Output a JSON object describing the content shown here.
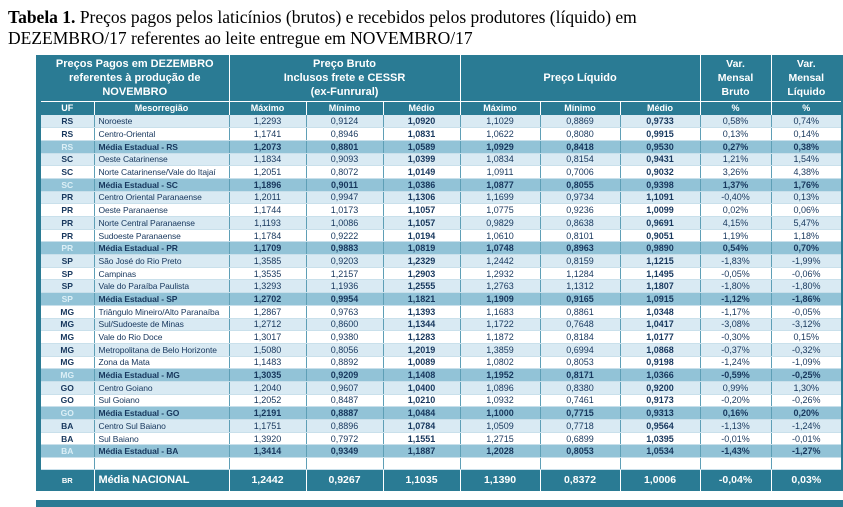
{
  "title": {
    "bold": "Tabela 1.",
    "line1_rest": " Preços pagos pelos laticínios (brutos) e recebidos pelos produtores (líquido) em",
    "line2": "DEZEMBRO/17 referentes ao leite entregue em NOVEMBRO/17"
  },
  "header": {
    "group_left": [
      "Preços Pagos em DEZEMBRO",
      "referentes à produção de",
      "NOVEMBRO"
    ],
    "group_bruto": [
      "Preço Bruto",
      "Inclusos frete e CESSR",
      "(ex-Funrural)"
    ],
    "group_liquido": "Preço Líquido",
    "group_var_bruto": [
      "Var.",
      "Mensal",
      "Bruto"
    ],
    "group_var_liquido": [
      "Var.",
      "Mensal",
      "Líquido"
    ],
    "sub": [
      "UF",
      "Mesorregião",
      "Máximo",
      "Mínimo",
      "Médio",
      "Máximo",
      "Mínimo",
      "Médio",
      "%",
      "%"
    ]
  },
  "rows": [
    {
      "uf": "RS",
      "name": "Noroeste",
      "values": [
        "1,2293",
        "0,9124",
        "1,0920",
        "1,1029",
        "0,8869",
        "0,9733"
      ],
      "vars": [
        "0,58%",
        "0,74%"
      ],
      "shade": "pale"
    },
    {
      "uf": "RS",
      "name": "Centro-Oriental",
      "values": [
        "1,1741",
        "0,8946",
        "1,0831",
        "1,0622",
        "0,8080",
        "0,9915"
      ],
      "vars": [
        "0,13%",
        "0,14%"
      ],
      "shade": "white"
    },
    {
      "uf": "RS",
      "name": "Média Estadual - RS",
      "values": [
        "1,2073",
        "0,8801",
        "1,0589",
        "1,0929",
        "0,8418",
        "0,9530"
      ],
      "vars": [
        "0,27%",
        "0,38%"
      ],
      "shade": "media"
    },
    {
      "uf": "SC",
      "name": "Oeste Catarinense",
      "values": [
        "1,1834",
        "0,9093",
        "1,0399",
        "1,0834",
        "0,8154",
        "0,9431"
      ],
      "vars": [
        "1,21%",
        "1,54%"
      ],
      "shade": "pale"
    },
    {
      "uf": "SC",
      "name": "Norte Catarinense/Vale do Itajaí",
      "values": [
        "1,2051",
        "0,8072",
        "1,0149",
        "1,0911",
        "0,7006",
        "0,9032"
      ],
      "vars": [
        "3,26%",
        "4,38%"
      ],
      "shade": "white"
    },
    {
      "uf": "SC",
      "name": "Média Estadual - SC",
      "values": [
        "1,1896",
        "0,9011",
        "1,0386",
        "1,0877",
        "0,8055",
        "0,9398"
      ],
      "vars": [
        "1,37%",
        "1,76%"
      ],
      "shade": "media"
    },
    {
      "uf": "PR",
      "name": "Centro Oriental Paranaense",
      "values": [
        "1,2011",
        "0,9947",
        "1,1306",
        "1,1699",
        "0,9734",
        "1,1091"
      ],
      "vars": [
        "-0,40%",
        "0,13%"
      ],
      "shade": "pale"
    },
    {
      "uf": "PR",
      "name": "Oeste Paranaense",
      "values": [
        "1,1744",
        "1,0173",
        "1,1057",
        "1,0775",
        "0,9236",
        "1,0099"
      ],
      "vars": [
        "0,02%",
        "0,06%"
      ],
      "shade": "white"
    },
    {
      "uf": "PR",
      "name": "Norte Central Paranaense",
      "values": [
        "1,1193",
        "1,0086",
        "1,1057",
        "0,9829",
        "0,8638",
        "0,9691"
      ],
      "vars": [
        "4,15%",
        "5,47%"
      ],
      "shade": "pale"
    },
    {
      "uf": "PR",
      "name": "Sudoeste Paranaense",
      "values": [
        "1,1784",
        "0,9222",
        "1,0194",
        "1,0610",
        "0,8101",
        "0,9051"
      ],
      "vars": [
        "1,19%",
        "1,18%"
      ],
      "shade": "white"
    },
    {
      "uf": "PR",
      "name": "Média Estadual - PR",
      "values": [
        "1,1709",
        "0,9883",
        "1,0819",
        "1,0748",
        "0,8963",
        "0,9890"
      ],
      "vars": [
        "0,54%",
        "0,70%"
      ],
      "shade": "media"
    },
    {
      "uf": "SP",
      "name": "São José do Rio Preto",
      "values": [
        "1,3585",
        "0,9203",
        "1,2329",
        "1,2442",
        "0,8159",
        "1,1215"
      ],
      "vars": [
        "-1,83%",
        "-1,99%"
      ],
      "shade": "pale"
    },
    {
      "uf": "SP",
      "name": "Campinas",
      "values": [
        "1,3535",
        "1,2157",
        "1,2903",
        "1,2932",
        "1,1284",
        "1,1495"
      ],
      "vars": [
        "-0,05%",
        "-0,06%"
      ],
      "shade": "white"
    },
    {
      "uf": "SP",
      "name": "Vale do Paraíba Paulista",
      "values": [
        "1,3293",
        "1,1936",
        "1,2555",
        "1,2763",
        "1,1312",
        "1,1807"
      ],
      "vars": [
        "-1,80%",
        "-1,80%"
      ],
      "shade": "pale"
    },
    {
      "uf": "SP",
      "name": "Média Estadual - SP",
      "values": [
        "1,2702",
        "0,9954",
        "1,1821",
        "1,1909",
        "0,9165",
        "1,0915"
      ],
      "vars": [
        "-1,12%",
        "-1,86%"
      ],
      "shade": "media"
    },
    {
      "uf": "MG",
      "name": "Triângulo Mineiro/Alto Paranaíba",
      "values": [
        "1,2867",
        "0,9763",
        "1,1393",
        "1,1683",
        "0,8861",
        "1,0348"
      ],
      "vars": [
        "-1,17%",
        "-0,05%"
      ],
      "shade": "white"
    },
    {
      "uf": "MG",
      "name": "Sul/Sudoeste de Minas",
      "values": [
        "1,2712",
        "0,8600",
        "1,1344",
        "1,1722",
        "0,7648",
        "1,0417"
      ],
      "vars": [
        "-3,08%",
        "-3,12%"
      ],
      "shade": "pale"
    },
    {
      "uf": "MG",
      "name": "Vale do Rio Doce",
      "values": [
        "1,3017",
        "0,9380",
        "1,1283",
        "1,1872",
        "0,8184",
        "1,0177"
      ],
      "vars": [
        "-0,30%",
        "0,15%"
      ],
      "shade": "white"
    },
    {
      "uf": "MG",
      "name": "Metropolitana de Belo Horizonte",
      "values": [
        "1,5080",
        "0,8056",
        "1,2019",
        "1,3859",
        "0,6994",
        "1,0868"
      ],
      "vars": [
        "-0,37%",
        "-0,32%"
      ],
      "shade": "pale"
    },
    {
      "uf": "MG",
      "name": "Zona da Mata",
      "values": [
        "1,1483",
        "0,8892",
        "1,0089",
        "1,0802",
        "0,8053",
        "0,9198"
      ],
      "vars": [
        "-1,24%",
        "-1,09%"
      ],
      "shade": "white"
    },
    {
      "uf": "MG",
      "name": "Média Estadual - MG",
      "values": [
        "1,3035",
        "0,9209",
        "1,1408",
        "1,1952",
        "0,8171",
        "1,0366"
      ],
      "vars": [
        "-0,59%",
        "-0,25%"
      ],
      "shade": "media"
    },
    {
      "uf": "GO",
      "name": "Centro Goiano",
      "values": [
        "1,2040",
        "0,9607",
        "1,0400",
        "1,0896",
        "0,8380",
        "0,9200"
      ],
      "vars": [
        "0,99%",
        "1,30%"
      ],
      "shade": "pale"
    },
    {
      "uf": "GO",
      "name": "Sul Goiano",
      "values": [
        "1,2052",
        "0,8487",
        "1,0210",
        "1,0932",
        "0,7461",
        "0,9173"
      ],
      "vars": [
        "-0,20%",
        "-0,26%"
      ],
      "shade": "white"
    },
    {
      "uf": "GO",
      "name": "Média Estadual - GO",
      "values": [
        "1,2191",
        "0,8887",
        "1,0484",
        "1,1000",
        "0,7715",
        "0,9313"
      ],
      "vars": [
        "0,16%",
        "0,20%"
      ],
      "shade": "media"
    },
    {
      "uf": "BA",
      "name": "Centro Sul Baiano",
      "values": [
        "1,1751",
        "0,8896",
        "1,0784",
        "1,0509",
        "0,7718",
        "0,9564"
      ],
      "vars": [
        "-1,13%",
        "-1,24%"
      ],
      "shade": "pale"
    },
    {
      "uf": "BA",
      "name": "Sul Baiano",
      "values": [
        "1,3920",
        "0,7972",
        "1,1551",
        "1,2715",
        "0,6899",
        "1,0395"
      ],
      "vars": [
        "-0,01%",
        "-0,01%"
      ],
      "shade": "white"
    },
    {
      "uf": "BA",
      "name": "Média Estadual - BA",
      "values": [
        "1,3414",
        "0,9349",
        "1,1887",
        "1,2028",
        "0,8053",
        "1,0534"
      ],
      "vars": [
        "-1,43%",
        "-1,27%"
      ],
      "shade": "media"
    }
  ],
  "national": {
    "uf": "BR",
    "name": "Média NACIONAL",
    "values": [
      "1,2442",
      "0,9267",
      "1,1035",
      "1,1390",
      "0,8372",
      "1,0006"
    ],
    "vars": [
      "-0,04%",
      "0,03%"
    ]
  },
  "colors": {
    "teal": "#2A7B94",
    "row_pale": "#D9EAF3",
    "row_media": "#92C3D7",
    "text_navy": "#17375D",
    "grid_v": "#5E9FB6",
    "grid_h": "#C9E0EB"
  }
}
